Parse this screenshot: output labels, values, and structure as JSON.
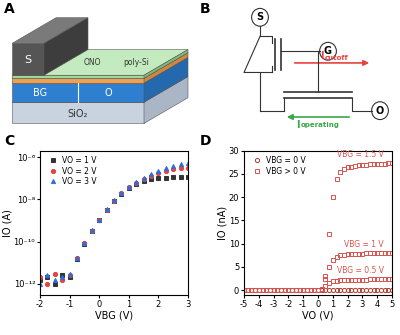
{
  "chart_data": [
    {
      "type": "line",
      "panel": "C",
      "x_label": "VBG (V)",
      "y_label": "IO (A)",
      "log": "y",
      "xlim": [
        -2,
        3
      ],
      "xticks": [
        -2,
        -1,
        0,
        1,
        2,
        3
      ],
      "ylim": [
        3e-13,
        2e-06
      ],
      "yticks": [
        {
          "value": 1e-12,
          "label": "10⁻¹²"
        },
        {
          "value": 1e-10,
          "label": "10⁻¹⁰"
        },
        {
          "value": 1e-08,
          "label": "10⁻⁸"
        },
        {
          "value": 1e-06,
          "label": "10⁻⁶"
        }
      ],
      "legend": "upper left",
      "x": [
        -2,
        -1.75,
        -1.5,
        -1.25,
        -1,
        -0.75,
        -0.5,
        -0.25,
        0,
        0.25,
        0.5,
        0.75,
        1,
        1.25,
        1.5,
        1.75,
        2,
        2.25,
        2.5,
        2.75,
        3
      ],
      "series": [
        {
          "name": "VO = 1 V",
          "color": "#333333",
          "marker": "square",
          "values": [
            1.5e-12,
            2e-12,
            1e-12,
            2.5e-12,
            2e-12,
            1.5e-11,
            8e-11,
            3e-10,
            1e-09,
            3e-09,
            8e-09,
            1.8e-08,
            3.5e-08,
            5.5e-08,
            7.5e-08,
            9e-08,
            1e-07,
            1.05e-07,
            1.1e-07,
            1.1e-07,
            1.1e-07
          ]
        },
        {
          "name": "VO = 2 V",
          "color": "#e8423c",
          "marker": "circle",
          "values": [
            2e-12,
            1e-12,
            3e-12,
            1.5e-12,
            2.5e-12,
            1.6e-11,
            8.5e-11,
            3.2e-10,
            1.05e-09,
            3.2e-09,
            8.5e-09,
            1.9e-08,
            3.8e-08,
            6.2e-08,
            9e-08,
            1.3e-07,
            1.8e-07,
            2.3e-07,
            2.7e-07,
            3e-07,
            3.2e-07
          ]
        },
        {
          "name": "VO = 3 V",
          "color": "#2a6fdb",
          "marker": "triangle",
          "values": [
            1e-12,
            2.5e-12,
            1.5e-12,
            2e-12,
            3e-12,
            1.7e-11,
            9e-11,
            3.4e-10,
            1.1e-09,
            3.4e-09,
            9e-09,
            2e-08,
            4e-08,
            6.8e-08,
            1e-07,
            1.5e-07,
            2.2e-07,
            3e-07,
            3.8e-07,
            4.5e-07,
            5e-07
          ]
        }
      ]
    },
    {
      "type": "line",
      "panel": "D",
      "x_label": "VO (V)",
      "y_label": "IO (nA)",
      "xlim": [
        -5,
        5
      ],
      "xticks": [
        -5,
        -4,
        -3,
        -2,
        -1,
        0,
        1,
        2,
        3,
        4,
        5
      ],
      "ylim": [
        -1,
        30
      ],
      "yticks": [
        0,
        5,
        10,
        15,
        20,
        25,
        30
      ],
      "legend": "upper left",
      "x": [
        -5,
        -4.75,
        -4.5,
        -4.25,
        -4,
        -3.75,
        -3.5,
        -3.25,
        -3,
        -2.75,
        -2.5,
        -2.25,
        -2,
        -1.75,
        -1.5,
        -1.25,
        -1,
        -0.75,
        -0.5,
        -0.25,
        0,
        0.25,
        0.5,
        0.75,
        1,
        1.25,
        1.5,
        1.75,
        2,
        2.25,
        2.5,
        2.75,
        3,
        3.25,
        3.5,
        3.75,
        4,
        4.25,
        4.5,
        4.75,
        5
      ],
      "series": [
        {
          "name": "VBG = 0 V",
          "color": "#b03a2e",
          "marker": "open_circle",
          "values": [
            0,
            0,
            0,
            0,
            0,
            0,
            0,
            0,
            0,
            0,
            0,
            0,
            0,
            0,
            0,
            0,
            0,
            0,
            0,
            0,
            0,
            0,
            0,
            0,
            0,
            0,
            0,
            0,
            0,
            0,
            0,
            0,
            0,
            0,
            0,
            0,
            0,
            0,
            0,
            0,
            0
          ]
        },
        {
          "name": "VBG > 0 V",
          "annotation": "VBG = 1.5 V",
          "color": "#d9534f",
          "marker": "open_square",
          "values": [
            0,
            0,
            0,
            0,
            0,
            0,
            0,
            0,
            0,
            0,
            0,
            0,
            0,
            0,
            0,
            0,
            0,
            0,
            0,
            0,
            0,
            0.2,
            3,
            12,
            20,
            24,
            25.5,
            26,
            26.4,
            26.6,
            26.8,
            26.9,
            27,
            27,
            27.1,
            27.1,
            27.2,
            27.2,
            27.2,
            27.3,
            27.3
          ]
        },
        {
          "name": "VBG > 0 V",
          "annotation": "VBG = 1 V",
          "color": "#d9534f",
          "marker": "open_square",
          "values": [
            0,
            0,
            0,
            0,
            0,
            0,
            0,
            0,
            0,
            0,
            0,
            0,
            0,
            0,
            0,
            0,
            0,
            0,
            0,
            0,
            0,
            0.3,
            2.5,
            5,
            6.5,
            7.2,
            7.5,
            7.6,
            7.7,
            7.7,
            7.8,
            7.8,
            7.8,
            7.9,
            7.9,
            7.9,
            7.9,
            8,
            8,
            8,
            8
          ]
        },
        {
          "name": "VBG > 0 V",
          "annotation": "VBG = 0.5 V",
          "color": "#d9534f",
          "marker": "open_square",
          "values": [
            0,
            0,
            0,
            0,
            0,
            0,
            0,
            0,
            0,
            0,
            0,
            0,
            0,
            0,
            0,
            0,
            0,
            0,
            0,
            0,
            0,
            0.3,
            1,
            1.6,
            1.9,
            2,
            2.1,
            2.1,
            2.1,
            2.2,
            2.2,
            2.2,
            2.2,
            2.2,
            2.3,
            2.3,
            2.3,
            2.3,
            2.3,
            2.3,
            2.3
          ]
        }
      ]
    }
  ],
  "diagram_a": {
    "panel": "A",
    "labels": {
      "source": "S",
      "back_gate": "BG",
      "ono": "ONO",
      "poly": "poly-Si",
      "output": "O",
      "substrate": "SiO₂"
    }
  },
  "diagram_b": {
    "panel": "B",
    "nodes": {
      "source": "S",
      "gate": "G",
      "output": "O"
    },
    "currents": [
      {
        "main": "I",
        "sub": "cutoff",
        "color": "#e8423c"
      },
      {
        "main": "I",
        "sub": "operating",
        "color": "#3aa64a"
      }
    ]
  }
}
